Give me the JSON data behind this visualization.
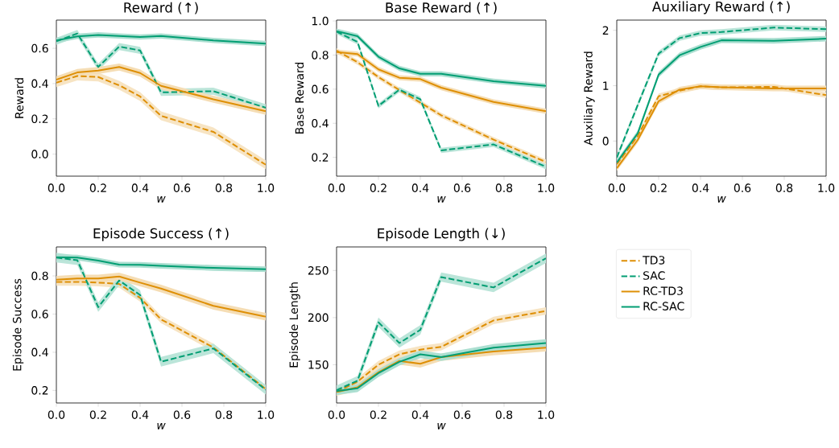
{
  "chart_data": [
    {
      "type": "line",
      "title": "Reward (↑)",
      "xlabel": "w",
      "ylabel": "Reward",
      "x": [
        0,
        0.1,
        0.2,
        0.3,
        0.4,
        0.5,
        0.75,
        1.0
      ],
      "xlim": [
        0,
        1
      ],
      "xticks": [
        {
          "value": 0,
          "label": "0.0"
        },
        {
          "value": 0.2,
          "label": "0.2"
        },
        {
          "value": 0.4,
          "label": "0.4"
        },
        {
          "value": 0.6,
          "label": "0.6"
        },
        {
          "value": 0.8,
          "label": "0.8"
        },
        {
          "value": 1,
          "label": "1.0"
        }
      ],
      "ylim": [
        -0.125,
        0.76
      ],
      "yticks": [
        {
          "value": 0,
          "label": "0.0"
        },
        {
          "value": 0.2,
          "label": "0.2"
        },
        {
          "value": 0.4,
          "label": "0.4"
        },
        {
          "value": 0.6,
          "label": "0.6"
        }
      ],
      "grid": false,
      "series": [
        {
          "color": "#de8f05",
          "line_style": "dashed",
          "values": [
            0.405,
            0.443,
            0.437,
            0.39,
            0.327,
            0.217,
            0.126,
            -0.06
          ],
          "lower": [
            0.38,
            0.418,
            0.412,
            0.365,
            0.302,
            0.192,
            0.101,
            -0.085
          ],
          "upper": [
            0.43,
            0.468,
            0.462,
            0.415,
            0.352,
            0.242,
            0.151,
            -0.035
          ]
        },
        {
          "color": "#029e73",
          "line_style": "dashed",
          "values": [
            0.64,
            0.684,
            0.494,
            0.61,
            0.588,
            0.35,
            0.357,
            0.263
          ],
          "lower": [
            0.62,
            0.664,
            0.474,
            0.59,
            0.568,
            0.33,
            0.337,
            0.243
          ],
          "upper": [
            0.66,
            0.704,
            0.514,
            0.63,
            0.608,
            0.37,
            0.377,
            0.283
          ]
        },
        {
          "color": "#de8f05",
          "line_style": "solid",
          "values": [
            0.422,
            0.463,
            0.474,
            0.494,
            0.46,
            0.387,
            0.311,
            0.243
          ],
          "lower": [
            0.402,
            0.443,
            0.454,
            0.474,
            0.44,
            0.367,
            0.291,
            0.223
          ],
          "upper": [
            0.442,
            0.483,
            0.494,
            0.514,
            0.48,
            0.407,
            0.331,
            0.263
          ]
        },
        {
          "color": "#029e73",
          "line_style": "solid",
          "values": [
            0.645,
            0.668,
            0.676,
            0.67,
            0.664,
            0.67,
            0.645,
            0.627
          ],
          "lower": [
            0.63,
            0.653,
            0.661,
            0.655,
            0.649,
            0.655,
            0.63,
            0.612
          ],
          "upper": [
            0.66,
            0.683,
            0.691,
            0.685,
            0.679,
            0.685,
            0.66,
            0.642
          ]
        }
      ]
    },
    {
      "type": "line",
      "title": "Base Reward (↑)",
      "xlabel": "w",
      "ylabel": "Base Reward",
      "x": [
        0,
        0.1,
        0.2,
        0.3,
        0.4,
        0.5,
        0.75,
        1.0
      ],
      "xlim": [
        0,
        1
      ],
      "xticks": [
        {
          "value": 0,
          "label": "0.0"
        },
        {
          "value": 0.2,
          "label": "0.2"
        },
        {
          "value": 0.4,
          "label": "0.4"
        },
        {
          "value": 0.6,
          "label": "0.6"
        },
        {
          "value": 0.8,
          "label": "0.8"
        },
        {
          "value": 1,
          "label": "1.0"
        }
      ],
      "ylim": [
        0.09,
        1.005
      ],
      "yticks": [
        {
          "value": 0.2,
          "label": "0.2"
        },
        {
          "value": 0.4,
          "label": "0.4"
        },
        {
          "value": 0.6,
          "label": "0.6"
        },
        {
          "value": 0.8,
          "label": "0.8"
        },
        {
          "value": 1,
          "label": "1.0"
        }
      ],
      "grid": false,
      "series": [
        {
          "color": "#de8f05",
          "line_style": "dashed",
          "values": [
            0.826,
            0.758,
            0.671,
            0.595,
            0.521,
            0.447,
            0.304,
            0.173
          ],
          "lower": [
            0.811,
            0.743,
            0.656,
            0.58,
            0.506,
            0.432,
            0.289,
            0.158
          ],
          "upper": [
            0.841,
            0.773,
            0.686,
            0.61,
            0.536,
            0.462,
            0.319,
            0.188
          ]
        },
        {
          "color": "#029e73",
          "line_style": "dashed",
          "values": [
            0.937,
            0.877,
            0.502,
            0.597,
            0.541,
            0.241,
            0.276,
            0.145
          ],
          "lower": [
            0.922,
            0.862,
            0.487,
            0.582,
            0.526,
            0.226,
            0.261,
            0.13
          ],
          "upper": [
            0.952,
            0.892,
            0.517,
            0.612,
            0.556,
            0.256,
            0.291,
            0.16
          ]
        },
        {
          "color": "#de8f05",
          "line_style": "solid",
          "values": [
            0.817,
            0.806,
            0.716,
            0.667,
            0.659,
            0.609,
            0.525,
            0.471
          ],
          "lower": [
            0.802,
            0.791,
            0.701,
            0.652,
            0.644,
            0.594,
            0.51,
            0.456
          ],
          "upper": [
            0.832,
            0.821,
            0.731,
            0.682,
            0.674,
            0.624,
            0.54,
            0.486
          ]
        },
        {
          "color": "#029e73",
          "line_style": "solid",
          "values": [
            0.94,
            0.911,
            0.79,
            0.722,
            0.69,
            0.69,
            0.647,
            0.619
          ],
          "lower": [
            0.925,
            0.896,
            0.775,
            0.707,
            0.675,
            0.675,
            0.632,
            0.604
          ],
          "upper": [
            0.955,
            0.926,
            0.805,
            0.737,
            0.705,
            0.705,
            0.662,
            0.634
          ]
        }
      ]
    },
    {
      "type": "line",
      "title": "Auxiliary Reward (↑)",
      "xlabel": "w",
      "ylabel": "Auxiliary Reward",
      "x": [
        0,
        0.1,
        0.2,
        0.3,
        0.4,
        0.5,
        0.75,
        1.0
      ],
      "xlim": [
        0,
        1
      ],
      "xticks": [
        {
          "value": 0,
          "label": "0.0"
        },
        {
          "value": 0.2,
          "label": "0.2"
        },
        {
          "value": 0.4,
          "label": "0.4"
        },
        {
          "value": 0.6,
          "label": "0.6"
        },
        {
          "value": 0.8,
          "label": "0.8"
        },
        {
          "value": 1,
          "label": "1.0"
        }
      ],
      "ylim": [
        -0.634,
        2.185
      ],
      "yticks": [
        0,
        1,
        2
      ],
      "grid": false,
      "series": [
        {
          "color": "#de8f05",
          "line_style": "dashed",
          "values": [
            -0.42,
            0.09,
            0.81,
            0.91,
            0.99,
            0.97,
            0.98,
            0.83
          ],
          "lower": [
            -0.47,
            0.04,
            0.76,
            0.86,
            0.94,
            0.92,
            0.93,
            0.78
          ],
          "upper": [
            -0.37,
            0.14,
            0.86,
            0.96,
            1.04,
            1.02,
            1.03,
            0.88
          ]
        },
        {
          "color": "#029e73",
          "line_style": "dashed",
          "values": [
            -0.3,
            0.65,
            1.58,
            1.86,
            1.95,
            1.97,
            2.05,
            2.02
          ],
          "lower": [
            -0.35,
            0.6,
            1.53,
            1.81,
            1.9,
            1.92,
            2.0,
            1.97
          ],
          "upper": [
            -0.25,
            0.7,
            1.63,
            1.91,
            2.0,
            2.02,
            2.1,
            2.07
          ]
        },
        {
          "color": "#de8f05",
          "line_style": "solid",
          "values": [
            -0.49,
            0.02,
            0.72,
            0.93,
            0.99,
            0.97,
            0.95,
            0.95
          ],
          "lower": [
            -0.54,
            -0.03,
            0.67,
            0.88,
            0.94,
            0.92,
            0.9,
            0.9
          ],
          "upper": [
            -0.44,
            0.07,
            0.77,
            0.98,
            1.04,
            1.02,
            1.0,
            1.0
          ]
        },
        {
          "color": "#029e73",
          "line_style": "solid",
          "values": [
            -0.39,
            0.14,
            1.2,
            1.55,
            1.7,
            1.82,
            1.81,
            1.85
          ],
          "lower": [
            -0.44,
            0.09,
            1.15,
            1.5,
            1.65,
            1.77,
            1.76,
            1.8
          ],
          "upper": [
            -0.34,
            0.19,
            1.25,
            1.6,
            1.75,
            1.87,
            1.86,
            1.9
          ]
        }
      ]
    },
    {
      "type": "line",
      "title": "Episode Success (↑)",
      "xlabel": "w",
      "ylabel": "Episode Success",
      "x": [
        0,
        0.1,
        0.2,
        0.3,
        0.4,
        0.5,
        0.75,
        1.0
      ],
      "xlim": [
        0,
        1
      ],
      "xticks": [
        {
          "value": 0,
          "label": "0.0"
        },
        {
          "value": 0.2,
          "label": "0.2"
        },
        {
          "value": 0.4,
          "label": "0.4"
        },
        {
          "value": 0.6,
          "label": "0.6"
        },
        {
          "value": 0.8,
          "label": "0.8"
        },
        {
          "value": 1,
          "label": "1.0"
        }
      ],
      "ylim": [
        0.134,
        0.952
      ],
      "yticks": [
        {
          "value": 0.2,
          "label": "0.2"
        },
        {
          "value": 0.4,
          "label": "0.4"
        },
        {
          "value": 0.6,
          "label": "0.6"
        },
        {
          "value": 0.8,
          "label": "0.8"
        }
      ],
      "grid": false,
      "series": [
        {
          "color": "#de8f05",
          "line_style": "dashed",
          "values": [
            0.769,
            0.769,
            0.765,
            0.758,
            0.685,
            0.572,
            0.425,
            0.207
          ],
          "lower": [
            0.749,
            0.749,
            0.745,
            0.738,
            0.665,
            0.552,
            0.405,
            0.187
          ],
          "upper": [
            0.789,
            0.789,
            0.785,
            0.778,
            0.705,
            0.592,
            0.445,
            0.227
          ]
        },
        {
          "color": "#029e73",
          "line_style": "dashed",
          "values": [
            0.896,
            0.882,
            0.636,
            0.776,
            0.7,
            0.35,
            0.42,
            0.203
          ],
          "lower": [
            0.871,
            0.857,
            0.611,
            0.751,
            0.675,
            0.325,
            0.395,
            0.178
          ],
          "upper": [
            0.921,
            0.907,
            0.661,
            0.801,
            0.725,
            0.375,
            0.445,
            0.228
          ]
        },
        {
          "color": "#de8f05",
          "line_style": "solid",
          "values": [
            0.78,
            0.786,
            0.786,
            0.797,
            0.765,
            0.734,
            0.643,
            0.586
          ],
          "lower": [
            0.76,
            0.766,
            0.766,
            0.777,
            0.745,
            0.714,
            0.623,
            0.566
          ],
          "upper": [
            0.8,
            0.806,
            0.806,
            0.817,
            0.785,
            0.754,
            0.663,
            0.606
          ]
        },
        {
          "color": "#029e73",
          "line_style": "solid",
          "values": [
            0.898,
            0.896,
            0.88,
            0.859,
            0.858,
            0.853,
            0.842,
            0.835
          ],
          "lower": [
            0.883,
            0.881,
            0.865,
            0.844,
            0.843,
            0.838,
            0.827,
            0.82
          ],
          "upper": [
            0.913,
            0.911,
            0.895,
            0.874,
            0.873,
            0.868,
            0.857,
            0.85
          ]
        }
      ]
    },
    {
      "type": "line",
      "title": "Episode Length (↓)",
      "xlabel": "w",
      "ylabel": "Episode Length",
      "x": [
        0,
        0.1,
        0.2,
        0.3,
        0.4,
        0.5,
        0.75,
        1.0
      ],
      "xlim": [
        0,
        1
      ],
      "xticks": [
        {
          "value": 0,
          "label": "0.0"
        },
        {
          "value": 0.2,
          "label": "0.2"
        },
        {
          "value": 0.4,
          "label": "0.4"
        },
        {
          "value": 0.6,
          "label": "0.6"
        },
        {
          "value": 0.8,
          "label": "0.8"
        },
        {
          "value": 1,
          "label": "1.0"
        }
      ],
      "ylim": [
        109.4,
        275
      ],
      "yticks": [
        150,
        200,
        250
      ],
      "grid": false,
      "legend": "right",
      "series": [
        {
          "name": "TD3",
          "color": "#de8f05",
          "line_style": "dashed",
          "values": [
            121,
            132,
            150,
            161,
            166,
            169,
            197,
            207
          ],
          "lower": [
            117,
            128,
            146,
            157,
            162,
            165,
            193,
            203
          ],
          "upper": [
            125,
            136,
            154,
            165,
            170,
            173,
            201,
            211
          ]
        },
        {
          "name": "SAC",
          "color": "#029e73",
          "line_style": "dashed",
          "values": [
            123,
            133,
            195,
            173,
            187,
            243,
            232,
            263
          ],
          "lower": [
            118,
            128,
            190,
            168,
            182,
            238,
            227,
            258
          ],
          "upper": [
            128,
            138,
            200,
            178,
            192,
            248,
            237,
            268
          ]
        },
        {
          "name": "RC-TD3",
          "color": "#de8f05",
          "line_style": "solid",
          "values": [
            121,
            126,
            142,
            154,
            151,
            158,
            164,
            168
          ],
          "lower": [
            117,
            122,
            138,
            150,
            147,
            154,
            160,
            164
          ],
          "upper": [
            125,
            130,
            146,
            158,
            155,
            162,
            168,
            172
          ]
        },
        {
          "name": "RC-SAC",
          "color": "#029e73",
          "line_style": "solid",
          "values": [
            122,
            125,
            141,
            153,
            161,
            158,
            168,
            173
          ],
          "lower": [
            118,
            121,
            137,
            149,
            157,
            154,
            164,
            169
          ],
          "upper": [
            126,
            129,
            145,
            157,
            165,
            162,
            172,
            177
          ]
        }
      ]
    }
  ]
}
